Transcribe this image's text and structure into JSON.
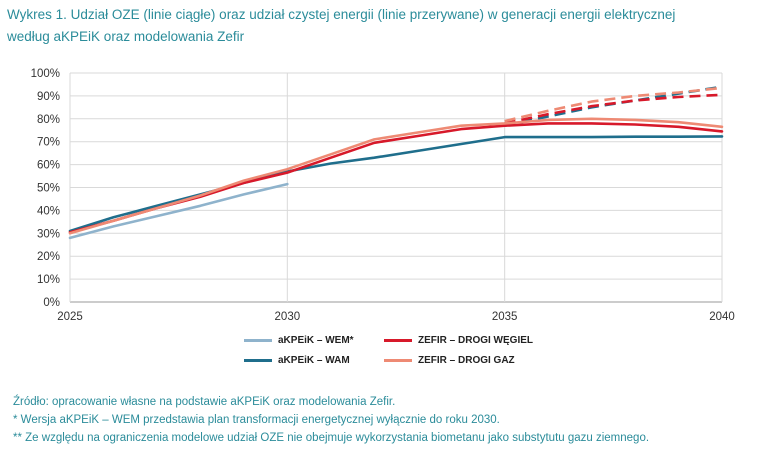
{
  "title_lines": [
    "Wykres 1. Udział OZE (linie ciągłe) oraz udział czystej energii (linie przerywane) w generacji energii elektrycznej",
    "według aKPEiK oraz modelowania Zefir"
  ],
  "chart_data": {
    "type": "line",
    "title": "Wykres 1. Udział OZE (linie ciągłe) oraz udział czystej energii (linie przerywane) w generacji energii elektrycznej według aKPEiK oraz modelowania Zefir",
    "xlabel": "",
    "ylabel": "",
    "xlim": [
      2025,
      2040
    ],
    "ylim": [
      0,
      100
    ],
    "x_ticks": [
      "2025",
      "2030",
      "2035",
      "2040"
    ],
    "y_ticks": [
      "0%",
      "10%",
      "20%",
      "30%",
      "40%",
      "50%",
      "60%",
      "70%",
      "80%",
      "90%",
      "100%"
    ],
    "grid": true,
    "series": [
      {
        "name": "aKPEiK – WEM*",
        "color": "#8fb3cc",
        "style": "solid",
        "x": [
          2025,
          2026,
          2027,
          2028,
          2029,
          2030
        ],
        "y": [
          28,
          33,
          37.5,
          42,
          47,
          51.5
        ]
      },
      {
        "name": "aKPEiK – WAM",
        "color": "#1f6e8c",
        "style": "solid",
        "x": [
          2025,
          2026,
          2027,
          2028,
          2029,
          2030,
          2031,
          2032,
          2033,
          2034,
          2035,
          2036,
          2037,
          2038,
          2039,
          2040
        ],
        "y": [
          31,
          37,
          42,
          47,
          52,
          57,
          60.5,
          63,
          66,
          69,
          72,
          72,
          72,
          72.2,
          72.2,
          72.3
        ]
      },
      {
        "name": "aKPEiK – WAM (czysta energia)",
        "color": "#1f6e8c",
        "style": "dashed",
        "x": [
          2035,
          2036,
          2037,
          2038,
          2039,
          2040
        ],
        "y": [
          77,
          81,
          85,
          88,
          91,
          94
        ]
      },
      {
        "name": "ZEFIR – DROGI WĘGIEL",
        "color": "#d7192a",
        "style": "solid",
        "x": [
          2025,
          2026,
          2027,
          2028,
          2029,
          2030,
          2031,
          2032,
          2033,
          2034,
          2035,
          2036,
          2037,
          2038,
          2039,
          2040
        ],
        "y": [
          30.5,
          35.5,
          41,
          46,
          52,
          56.5,
          63,
          69.5,
          72.5,
          75.5,
          77,
          78,
          78,
          77.5,
          76.5,
          74.5
        ]
      },
      {
        "name": "ZEFIR – DROGI WĘGIEL (czysta energia)",
        "color": "#d7192a",
        "style": "dashed",
        "x": [
          2035,
          2036,
          2037,
          2038,
          2039,
          2040
        ],
        "y": [
          78,
          82,
          85.5,
          88,
          89.5,
          90.5
        ]
      },
      {
        "name": "ZEFIR – DROGI GAZ",
        "color": "#ee8a74",
        "style": "solid",
        "x": [
          2025,
          2026,
          2027,
          2028,
          2029,
          2030,
          2031,
          2032,
          2033,
          2034,
          2035,
          2036,
          2037,
          2038,
          2039,
          2040
        ],
        "y": [
          30,
          35.5,
          41,
          46.5,
          53,
          58,
          64.5,
          71,
          74,
          77,
          78,
          79.5,
          80,
          79.5,
          78.5,
          76.5
        ]
      },
      {
        "name": "ZEFIR – DROGI GAZ (czysta energia)",
        "color": "#ee8a74",
        "style": "dashed",
        "x": [
          2035,
          2036,
          2037,
          2038,
          2039,
          2040
        ],
        "y": [
          79,
          83.5,
          87.5,
          90,
          91.5,
          93.5
        ]
      }
    ]
  },
  "legend": [
    {
      "label": "aKPEiK – WEM*",
      "color": "#8fb3cc"
    },
    {
      "label": "ZEFIR – DROGI WĘGIEL",
      "color": "#d7192a"
    },
    {
      "label": "aKPEiK – WAM",
      "color": "#1f6e8c"
    },
    {
      "label": "ZEFIR – DROGI GAZ",
      "color": "#ee8a74"
    }
  ],
  "source_lines": [
    "Źródło: opracowanie własne na podstawie aKPEiK oraz modelowania Zefir.",
    "* Wersja aKPEiK – WEM przedstawia plan transformacji energetycznej wyłącznie do roku 2030.",
    "** Ze względu na ograniczenia modelowe udział OZE nie obejmuje wykorzystania biometanu jako substytutu gazu ziemnego."
  ]
}
